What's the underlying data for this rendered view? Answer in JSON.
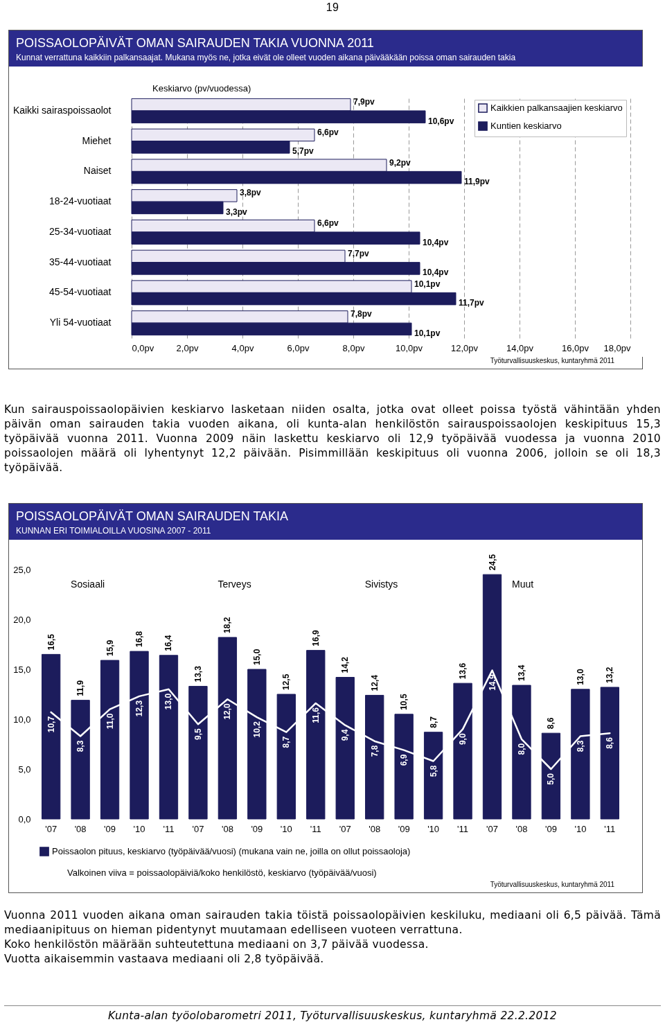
{
  "chart_data": [
    {
      "type": "other",
      "annotations": [
        "19"
      ]
    },
    {
      "type": "bar",
      "title": "POISSAOLOPÄIVÄT OMAN SAIRAUDEN TAKIA VUONNA 2011",
      "subtitle": "Kunnat verrattuna kaikkiin palkansaajat. Mukana myös ne, jotka eivät ole olleet vuoden aikana päivääkään poissa oman sairauden takia",
      "xlabel": "Keskiarvo (pv/vuodessa)",
      "orientation": "horizontal",
      "categories": [
        "Kaikki sairaspoissaolot",
        "Miehet",
        "Naiset",
        "18-24-vuotiaat",
        "25-34-vuotiaat",
        "35-44-vuotiaat",
        "45-54-vuotiaat",
        "Yli 54-vuotiaat"
      ],
      "series": [
        {
          "name": "Kaikkien palkansaajien keskiarvo",
          "color": "#ebe8f4",
          "values": [
            7.9,
            6.6,
            9.2,
            3.8,
            6.6,
            7.7,
            10.1,
            7.8
          ],
          "value_labels": [
            "7,9pv",
            "6,6pv",
            "9,2pv",
            "3,8pv",
            "6,6pv",
            "7,7pv",
            "10,1pv",
            "7,8pv"
          ]
        },
        {
          "name": "Kuntien keskiarvo",
          "color": "#1c1c5c",
          "values": [
            10.6,
            5.7,
            11.9,
            3.3,
            10.4,
            10.4,
            11.7,
            10.1
          ],
          "value_labels": [
            "10,6pv",
            "5,7pv",
            "11,9pv",
            "3,3pv",
            "10,4pv",
            "10,4pv",
            "11,7pv",
            "10,1pv"
          ]
        }
      ],
      "xlim": [
        0,
        18
      ],
      "xticks": [
        {
          "value": 0,
          "label": "0,0pv"
        },
        {
          "value": 2,
          "label": "2,0pv"
        },
        {
          "value": 4,
          "label": "4,0pv"
        },
        {
          "value": 6,
          "label": "6,0pv"
        },
        {
          "value": 8,
          "label": "8,0pv"
        },
        {
          "value": 10,
          "label": "10,0pv"
        },
        {
          "value": 12,
          "label": "12,0pv"
        },
        {
          "value": 14,
          "label": "14,0pv"
        },
        {
          "value": 16,
          "label": "16,0pv"
        },
        {
          "value": 18,
          "label": "18,0pv"
        }
      ],
      "grid": "x",
      "legend": "top right",
      "annotations": [
        "Työturvallisuuskeskus, kuntaryhmä 2011"
      ]
    },
    {
      "type": "other",
      "annotations": [
        "Kun sairauspoissaolopäivien keskiarvo lasketaan niiden osalta, jotka ovat olleet poissa työstä vähintään yhden päivän oman sairauden takia vuoden aikana, oli kunta-alan henkilöstön sairauspoissaolojen keskipituus 15,3 työpäivää vuonna 2011. Vuonna 2009 näin laskettu keskiarvo oli 12,9 työpäivää vuodessa ja vuonna 2010 poissaolojen määrä oli lyhentynyt 12,2 päivään. Pisimmillään keskipituus oli vuonna 2006, jolloin se oli 18,3 työpäivää."
      ]
    },
    {
      "type": "bar",
      "title": "POISSAOLOPÄIVÄT OMAN SAIRAUDEN TAKIA",
      "subtitle": "KUNNAN ERI TOIMIALOILLA VUOSINA 2007 - 2011",
      "categories": [
        "'07",
        "'08",
        "'09",
        "'10",
        "'11",
        "'07",
        "'08",
        "'09",
        "'10",
        "'11",
        "'07",
        "'08",
        "'09",
        "'10",
        "'11",
        "'07",
        "'08",
        "'09",
        "'10",
        "'11"
      ],
      "series": [
        {
          "type": "bar",
          "name": "Poissaolon pituus, keskiarvo  (työpäivää/vuosi) (mukana vain ne, joilla on ollut poissaoloja)",
          "color": "#1c1c5c",
          "values": [
            16.5,
            11.9,
            15.9,
            16.8,
            16.4,
            13.3,
            18.2,
            15.0,
            12.5,
            16.9,
            14.2,
            12.4,
            10.5,
            8.7,
            13.6,
            24.5,
            13.4,
            8.6,
            13.0,
            13.2
          ],
          "value_labels": [
            "16,5",
            "11,9",
            "15,9",
            "16,8",
            "16,4",
            "13,3",
            "18,2",
            "15,0",
            "12,5",
            "16,9",
            "14,2",
            "12,4",
            "10,5",
            "8,7",
            "13,6",
            "24,5",
            "13,4",
            "8,6",
            "13,0",
            "13,2"
          ]
        },
        {
          "type": "line",
          "color": "#ffffff",
          "values": [
            10.7,
            8.3,
            11.0,
            12.3,
            13.0,
            9.5,
            12.0,
            10.2,
            8.7,
            11.6,
            9.4,
            7.8,
            6.9,
            5.8,
            9.0,
            14.9,
            8.0,
            5.0,
            8.3,
            8.6
          ],
          "value_labels": [
            "10,7",
            "8,3",
            "11,0",
            "12,3",
            "13,0",
            "9,5",
            "12,0",
            "10,2",
            "8,7",
            "11,6",
            "9,4",
            "7,8",
            "6,9",
            "5,8",
            "9,0",
            "14,9",
            "8,0",
            "5,0",
            "8,3",
            "8,6"
          ]
        }
      ],
      "ylim": [
        0,
        25
      ],
      "yticks": [
        {
          "value": 0,
          "label": "0,0"
        },
        {
          "value": 5,
          "label": "5,0"
        },
        {
          "value": 10,
          "label": "10,0"
        },
        {
          "value": 15,
          "label": "15,0"
        },
        {
          "value": 20,
          "label": "20,0"
        },
        {
          "value": 25,
          "label": "25,0"
        }
      ],
      "legend": "bottom",
      "annotations": [
        "Sosiaali",
        "Terveys",
        "Sivistys",
        "Muut",
        "Valkoinen viiva = poissaolopäiviä/koko henkilöstö, keskiarvo (työpäivää/vuosi)",
        "Työturvallisuuskeskus, kuntaryhmä 2011"
      ]
    },
    {
      "type": "other",
      "annotations": [
        "Vuonna 2011 vuoden aikana oman sairauden takia töistä poissaolopäivien keskiluku, mediaani oli 6,5 päivää. Tämä mediaanipituus on hieman pidentynyt muutamaan edelliseen vuoteen verrattuna.",
        "Koko henkilöstön määrään suhteutettuna mediaani on 3,7 päivää vuodessa.",
        "Vuotta aikaisemmin vastaava mediaani oli 2,8 työpäivää.",
        "Kunta-alan työolobarometri 2011, Työturvallisuuskeskus, kuntaryhmä 22.2.2012"
      ]
    }
  ]
}
